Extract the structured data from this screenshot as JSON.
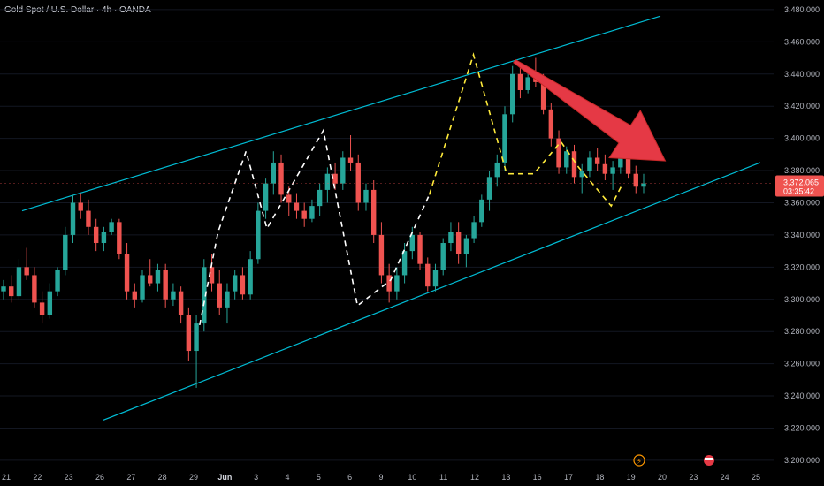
{
  "header": {
    "title": "Gold Spot / U.S. Dollar · 4h · OANDA"
  },
  "chart_data": {
    "type": "candlestick",
    "ylim": [
      3195,
      3486
    ],
    "y_ticks": [
      3200,
      3220,
      3240,
      3260,
      3280,
      3300,
      3320,
      3340,
      3360,
      3380,
      3400,
      3420,
      3440,
      3460,
      3480
    ],
    "y_tick_labels": [
      "3,200.000",
      "3,220.000",
      "3,240.000",
      "3,260.000",
      "3,280.000",
      "3,300.000",
      "3,320.000",
      "3,340.000",
      "3,360.000",
      "3,380.000",
      "3,400.000",
      "3,420.000",
      "3,440.000",
      "3,460.000",
      "3,480.000"
    ],
    "x_ticks": [
      "21",
      "22",
      "23",
      "26",
      "27",
      "28",
      "29",
      "Jun",
      "3",
      "4",
      "5",
      "6",
      "9",
      "10",
      "11",
      "12",
      "13",
      "16",
      "17",
      "18",
      "19",
      "20",
      "23",
      "24",
      "25"
    ],
    "x_tick_bold": [
      "Jun"
    ],
    "current_price": {
      "label": "3,372.065",
      "countdown": "03:35:42",
      "value": 3372.065
    },
    "colors": {
      "up": "#26a69a",
      "down": "#ef5350",
      "channel": "#00bcd4",
      "path_white": "#ffffff",
      "path_yellow": "#ffeb3b",
      "arrow": "#e53945",
      "price_tag": "#ef5350"
    },
    "channel": {
      "upper": [
        [
          3355,
          3476
        ]
      ],
      "lower": [
        [
          3225,
          3385
        ]
      ]
    },
    "candles": [
      [
        3305,
        3312,
        3300,
        3308
      ],
      [
        3308,
        3315,
        3298,
        3302
      ],
      [
        3302,
        3325,
        3300,
        3320
      ],
      [
        3320,
        3332,
        3312,
        3315
      ],
      [
        3315,
        3320,
        3295,
        3298
      ],
      [
        3298,
        3305,
        3285,
        3290
      ],
      [
        3290,
        3310,
        3288,
        3305
      ],
      [
        3305,
        3320,
        3302,
        3318
      ],
      [
        3318,
        3345,
        3315,
        3340
      ],
      [
        3340,
        3365,
        3335,
        3360
      ],
      [
        3360,
        3366,
        3350,
        3355
      ],
      [
        3355,
        3362,
        3340,
        3345
      ],
      [
        3345,
        3350,
        3330,
        3335
      ],
      [
        3335,
        3345,
        3330,
        3342
      ],
      [
        3342,
        3350,
        3340,
        3348
      ],
      [
        3348,
        3350,
        3325,
        3328
      ],
      [
        3328,
        3335,
        3300,
        3305
      ],
      [
        3305,
        3310,
        3295,
        3300
      ],
      [
        3300,
        3318,
        3298,
        3315
      ],
      [
        3315,
        3325,
        3308,
        3310
      ],
      [
        3310,
        3322,
        3305,
        3318
      ],
      [
        3318,
        3322,
        3295,
        3300
      ],
      [
        3300,
        3310,
        3296,
        3305
      ],
      [
        3305,
        3308,
        3285,
        3290
      ],
      [
        3290,
        3295,
        3262,
        3268
      ],
      [
        3268,
        3290,
        3245,
        3285
      ],
      [
        3285,
        3325,
        3280,
        3320
      ],
      [
        3320,
        3328,
        3305,
        3310
      ],
      [
        3310,
        3318,
        3290,
        3295
      ],
      [
        3295,
        3310,
        3285,
        3305
      ],
      [
        3305,
        3318,
        3300,
        3315
      ],
      [
        3315,
        3320,
        3300,
        3303
      ],
      [
        3303,
        3330,
        3300,
        3325
      ],
      [
        3325,
        3360,
        3322,
        3355
      ],
      [
        3355,
        3375,
        3350,
        3372
      ],
      [
        3372,
        3392,
        3365,
        3385
      ],
      [
        3385,
        3390,
        3360,
        3365
      ],
      [
        3365,
        3370,
        3352,
        3360
      ],
      [
        3360,
        3366,
        3350,
        3355
      ],
      [
        3355,
        3360,
        3345,
        3350
      ],
      [
        3350,
        3362,
        3348,
        3358
      ],
      [
        3358,
        3372,
        3352,
        3368
      ],
      [
        3368,
        3382,
        3360,
        3378
      ],
      [
        3378,
        3385,
        3368,
        3372
      ],
      [
        3372,
        3392,
        3368,
        3388
      ],
      [
        3388,
        3402,
        3380,
        3385
      ],
      [
        3385,
        3390,
        3355,
        3360
      ],
      [
        3360,
        3372,
        3355,
        3368
      ],
      [
        3368,
        3374,
        3335,
        3340
      ],
      [
        3340,
        3348,
        3310,
        3315
      ],
      [
        3315,
        3322,
        3298,
        3305
      ],
      [
        3305,
        3320,
        3300,
        3315
      ],
      [
        3315,
        3335,
        3310,
        3330
      ],
      [
        3330,
        3345,
        3325,
        3340
      ],
      [
        3340,
        3342,
        3318,
        3322
      ],
      [
        3322,
        3326,
        3305,
        3308
      ],
      [
        3308,
        3322,
        3305,
        3318
      ],
      [
        3318,
        3338,
        3315,
        3335
      ],
      [
        3335,
        3348,
        3330,
        3342
      ],
      [
        3342,
        3348,
        3322,
        3328
      ],
      [
        3328,
        3340,
        3320,
        3338
      ],
      [
        3338,
        3352,
        3335,
        3348
      ],
      [
        3348,
        3365,
        3345,
        3362
      ],
      [
        3362,
        3380,
        3355,
        3376
      ],
      [
        3376,
        3390,
        3370,
        3385
      ],
      [
        3385,
        3420,
        3380,
        3415
      ],
      [
        3415,
        3445,
        3410,
        3440
      ],
      [
        3440,
        3446,
        3425,
        3430
      ],
      [
        3430,
        3442,
        3428,
        3438
      ],
      [
        3438,
        3450,
        3432,
        3435
      ],
      [
        3435,
        3440,
        3415,
        3418
      ],
      [
        3418,
        3422,
        3395,
        3400
      ],
      [
        3400,
        3405,
        3378,
        3382
      ],
      [
        3382,
        3395,
        3378,
        3392
      ],
      [
        3392,
        3396,
        3372,
        3376
      ],
      [
        3376,
        3384,
        3366,
        3380
      ],
      [
        3380,
        3392,
        3376,
        3388
      ],
      [
        3388,
        3394,
        3380,
        3384
      ],
      [
        3384,
        3390,
        3374,
        3378
      ],
      [
        3378,
        3386,
        3368,
        3382
      ],
      [
        3382,
        3396,
        3378,
        3392
      ],
      [
        3392,
        3396,
        3375,
        3378
      ],
      [
        3378,
        3383,
        3366,
        3370
      ],
      [
        3370,
        3378,
        3366,
        3372
      ]
    ],
    "white_path": [
      [
        0.258,
        3284
      ],
      [
        0.282,
        3342
      ],
      [
        0.318,
        3392
      ],
      [
        0.345,
        3344
      ],
      [
        0.418,
        3405
      ],
      [
        0.462,
        3296
      ],
      [
        0.505,
        3312
      ],
      [
        0.555,
        3365
      ]
    ],
    "yellow_path": [
      [
        0.555,
        3365
      ],
      [
        0.612,
        3452
      ],
      [
        0.655,
        3378
      ],
      [
        0.69,
        3378
      ],
      [
        0.725,
        3398
      ],
      [
        0.748,
        3382
      ],
      [
        0.79,
        3358
      ],
      [
        0.805,
        3372
      ]
    ],
    "arrow": {
      "from": [
        3448,
        0.665
      ],
      "to": [
        3386,
        0.86
      ]
    }
  }
}
